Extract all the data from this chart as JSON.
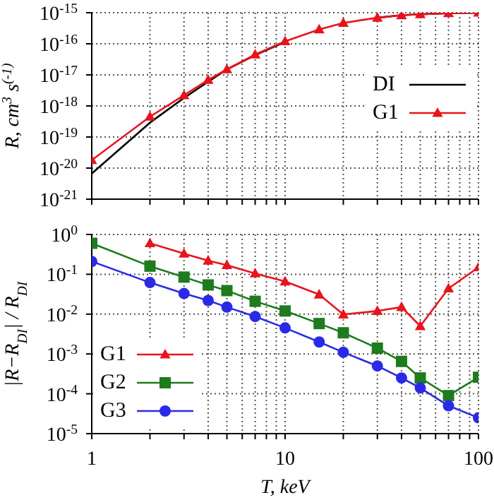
{
  "chart_data": [
    {
      "type": "line",
      "ylabel": "R, cm$^{3}$ s$^{(-1)}$",
      "x": [
        1,
        2,
        3,
        4,
        5,
        7,
        10,
        15,
        20,
        30,
        40,
        50,
        70,
        100
      ],
      "series": [
        {
          "name": "DI",
          "color": "#000000",
          "marker": "none",
          "values": [
            6.7e-21,
            2.9e-19,
            1.8e-18,
            6e-18,
            1.5e-17,
            4.3e-17,
            1.15e-16,
            null,
            null,
            6.9e-16,
            8.3e-16,
            8.9e-16,
            9.7e-16,
            1e-15
          ]
        },
        {
          "name": "G1",
          "color": "#e8141c",
          "marker": "triangle",
          "values": [
            1.8e-20,
            4.5e-19,
            2.2e-18,
            6.9e-18,
            1.5e-17,
            4.5e-17,
            1.2e-16,
            2.9e-16,
            4.7e-16,
            6.9e-16,
            8.3e-16,
            8.9e-16,
            9.7e-16,
            1e-15
          ]
        }
      ],
      "log": "xy",
      "xlim": [
        1,
        100
      ],
      "ylim": [
        1e-21,
        1e-15
      ],
      "xticks": [
        1,
        {
          "value": 2,
          "label": null
        },
        {
          "value": 3,
          "label": null
        },
        {
          "value": 4,
          "label": null
        },
        {
          "value": 5,
          "label": null
        },
        {
          "value": 6,
          "label": null
        },
        {
          "value": 7,
          "label": null
        },
        {
          "value": 8,
          "label": null
        },
        {
          "value": 9,
          "label": null
        },
        10,
        {
          "value": 20,
          "label": null
        },
        {
          "value": 30,
          "label": null
        },
        {
          "value": 40,
          "label": null
        },
        {
          "value": 50,
          "label": null
        },
        {
          "value": 60,
          "label": null
        },
        {
          "value": 70,
          "label": null
        },
        {
          "value": 80,
          "label": null
        },
        {
          "value": 90,
          "label": null
        },
        100
      ],
      "yticks": [
        {
          "value": 1e-21,
          "label": "10$^{-21}$"
        },
        {
          "value": 1e-20,
          "label": "10$^{-20}$"
        },
        {
          "value": 1e-19,
          "label": "10$^{-19}$"
        },
        {
          "value": 1e-18,
          "label": "10$^{-18}$"
        },
        {
          "value": 1e-17,
          "label": "10$^{-17}$"
        },
        {
          "value": 1e-16,
          "label": "10$^{-16}$"
        },
        {
          "value": 1e-15,
          "label": "10$^{-15}$"
        }
      ],
      "tick_labels": "y",
      "grid": true,
      "legend": "right",
      "line_style": "solid"
    },
    {
      "type": "line",
      "xlabel": "T, keV",
      "ylabel": "|R−R$_{DI}$| / R$_{DI}$",
      "x": [
        1,
        2,
        3,
        4,
        5,
        7,
        10,
        15,
        20,
        30,
        40,
        50,
        70,
        100
      ],
      "series": [
        {
          "name": "G1",
          "color": "#e8141c",
          "marker": "triangle",
          "values": [
            null,
            0.6,
            0.33,
            0.22,
            0.17,
            0.105,
            0.066,
            0.031,
            0.0098,
            0.012,
            0.015,
            0.005,
            0.044,
            0.15
          ]
        },
        {
          "name": "G2",
          "color": "#1e7b1e",
          "marker": "square",
          "values": [
            0.6,
            0.16,
            0.085,
            0.054,
            0.039,
            0.021,
            0.012,
            0.0058,
            0.0034,
            0.0014,
            0.00065,
            0.00025,
            9e-05,
            0.00026
          ]
        },
        {
          "name": "G3",
          "color": "#2a2ae6",
          "marker": "circle",
          "values": [
            0.21,
            0.062,
            0.033,
            0.022,
            0.015,
            0.0087,
            0.0045,
            0.002,
            0.0011,
            0.0005,
            0.00025,
            0.00014,
            5e-05,
            2.5e-05
          ]
        }
      ],
      "log": "xy",
      "xlim": [
        1,
        100
      ],
      "ylim": [
        1e-05,
        1
      ],
      "xticks": [
        1,
        {
          "value": 2,
          "label": null
        },
        {
          "value": 3,
          "label": null
        },
        {
          "value": 4,
          "label": null
        },
        {
          "value": 5,
          "label": null
        },
        {
          "value": 6,
          "label": null
        },
        {
          "value": 7,
          "label": null
        },
        {
          "value": 8,
          "label": null
        },
        {
          "value": 9,
          "label": null
        },
        10,
        {
          "value": 20,
          "label": null
        },
        {
          "value": 30,
          "label": null
        },
        {
          "value": 40,
          "label": null
        },
        {
          "value": 50,
          "label": null
        },
        {
          "value": 60,
          "label": null
        },
        {
          "value": 70,
          "label": null
        },
        {
          "value": 80,
          "label": null
        },
        {
          "value": 90,
          "label": null
        },
        100
      ],
      "yticks": [
        {
          "value": 1e-05,
          "label": "10$^{-5}$"
        },
        {
          "value": 0.0001,
          "label": "10$^{-4}$"
        },
        {
          "value": 0.001,
          "label": "10$^{-3}$"
        },
        {
          "value": 0.01,
          "label": "10$^{-2}$"
        },
        {
          "value": 0.1,
          "label": "10$^{-1}$"
        },
        {
          "value": 1,
          "label": "10$^{0}$"
        }
      ],
      "grid": true,
      "legend": "bottom left",
      "line_style": "solid"
    }
  ]
}
